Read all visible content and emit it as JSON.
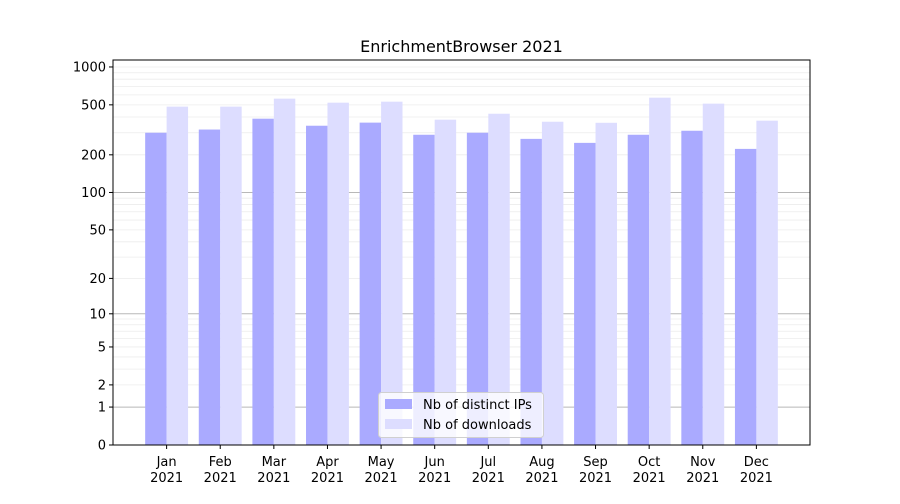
{
  "chart_data": {
    "type": "bar",
    "title": "EnrichmentBrowser 2021",
    "xlabel": "",
    "ylabel": "",
    "y_scale": "log10(1+y)",
    "ylim": [
      0,
      1136
    ],
    "grid": true,
    "legend_position": "lower center",
    "categories": [
      "Jan\n2021",
      "Feb\n2021",
      "Mar\n2021",
      "Apr\n2021",
      "May\n2021",
      "Jun\n2021",
      "Jul\n2021",
      "Aug\n2021",
      "Sep\n2021",
      "Oct\n2021",
      "Nov\n2021",
      "Dec\n2021"
    ],
    "y_ticks": [
      0,
      1,
      2,
      5,
      10,
      20,
      50,
      100,
      200,
      500,
      1000
    ],
    "series": [
      {
        "name": "Nb of distinct IPs",
        "color": "#aaaaff",
        "values": [
          300,
          318,
          388,
          341,
          361,
          289,
          300,
          268,
          249,
          289,
          311,
          223
        ]
      },
      {
        "name": "Nb of downloads",
        "color": "#ddddff",
        "values": [
          484,
          484,
          560,
          520,
          530,
          381,
          425,
          367,
          360,
          570,
          511,
          374
        ]
      }
    ]
  }
}
